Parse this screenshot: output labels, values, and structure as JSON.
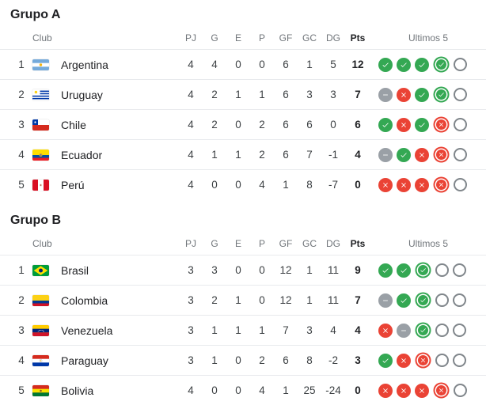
{
  "colors": {
    "win": "#34a853",
    "loss": "#ea4335",
    "draw": "#9aa0a6",
    "upcoming_border": "#80868b",
    "divider": "#e8eaed",
    "header_text": "#70757a",
    "title_text": "#202124"
  },
  "icons": {
    "win": "check-icon",
    "loss": "x-icon",
    "draw": "minus-icon",
    "upcoming": "empty-circle-icon"
  },
  "groups": [
    {
      "title": "Grupo A",
      "columns": {
        "club": "Club",
        "stats": [
          "PJ",
          "G",
          "E",
          "P",
          "GF",
          "GC",
          "DG"
        ],
        "pts": "Pts",
        "form": "Ultimos 5"
      },
      "rows": [
        {
          "rank": "1",
          "team": "Argentina",
          "flag": "argentina",
          "stats": [
            "4",
            "4",
            "0",
            "0",
            "6",
            "1",
            "5"
          ],
          "pts": "12",
          "form": [
            "win",
            "win",
            "win",
            "win:latest",
            "upcoming"
          ]
        },
        {
          "rank": "2",
          "team": "Uruguay",
          "flag": "uruguay",
          "stats": [
            "4",
            "2",
            "1",
            "1",
            "6",
            "3",
            "3"
          ],
          "pts": "7",
          "form": [
            "draw",
            "loss",
            "win",
            "win:latest",
            "upcoming"
          ]
        },
        {
          "rank": "3",
          "team": "Chile",
          "flag": "chile",
          "stats": [
            "4",
            "2",
            "0",
            "2",
            "6",
            "6",
            "0"
          ],
          "pts": "6",
          "form": [
            "win",
            "loss",
            "win",
            "loss:latest",
            "upcoming"
          ]
        },
        {
          "rank": "4",
          "team": "Ecuador",
          "flag": "ecuador",
          "stats": [
            "4",
            "1",
            "1",
            "2",
            "6",
            "7",
            "-1"
          ],
          "pts": "4",
          "form": [
            "draw",
            "win",
            "loss",
            "loss:latest",
            "upcoming"
          ]
        },
        {
          "rank": "5",
          "team": "Perú",
          "flag": "peru",
          "stats": [
            "4",
            "0",
            "0",
            "4",
            "1",
            "8",
            "-7"
          ],
          "pts": "0",
          "form": [
            "loss",
            "loss",
            "loss",
            "loss:latest",
            "upcoming"
          ]
        }
      ]
    },
    {
      "title": "Grupo B",
      "columns": {
        "club": "Club",
        "stats": [
          "PJ",
          "G",
          "E",
          "P",
          "GF",
          "GC",
          "DG"
        ],
        "pts": "Pts",
        "form": "Ultimos 5"
      },
      "rows": [
        {
          "rank": "1",
          "team": "Brasil",
          "flag": "brasil",
          "stats": [
            "3",
            "3",
            "0",
            "0",
            "12",
            "1",
            "11"
          ],
          "pts": "9",
          "form": [
            "win",
            "win",
            "win:latest",
            "upcoming",
            "upcoming"
          ]
        },
        {
          "rank": "2",
          "team": "Colombia",
          "flag": "colombia",
          "stats": [
            "3",
            "2",
            "1",
            "0",
            "12",
            "1",
            "11"
          ],
          "pts": "7",
          "form": [
            "draw",
            "win",
            "win:latest",
            "upcoming",
            "upcoming"
          ]
        },
        {
          "rank": "3",
          "team": "Venezuela",
          "flag": "venezuela",
          "stats": [
            "3",
            "1",
            "1",
            "1",
            "7",
            "3",
            "4"
          ],
          "pts": "4",
          "form": [
            "loss",
            "draw",
            "win:latest",
            "upcoming",
            "upcoming"
          ]
        },
        {
          "rank": "4",
          "team": "Paraguay",
          "flag": "paraguay",
          "stats": [
            "3",
            "1",
            "0",
            "2",
            "6",
            "8",
            "-2"
          ],
          "pts": "3",
          "form": [
            "win",
            "loss",
            "loss:latest",
            "upcoming",
            "upcoming"
          ]
        },
        {
          "rank": "5",
          "team": "Bolivia",
          "flag": "bolivia",
          "stats": [
            "4",
            "0",
            "0",
            "4",
            "1",
            "25",
            "-24"
          ],
          "pts": "0",
          "form": [
            "loss",
            "loss",
            "loss",
            "loss:latest",
            "upcoming"
          ]
        }
      ]
    }
  ]
}
